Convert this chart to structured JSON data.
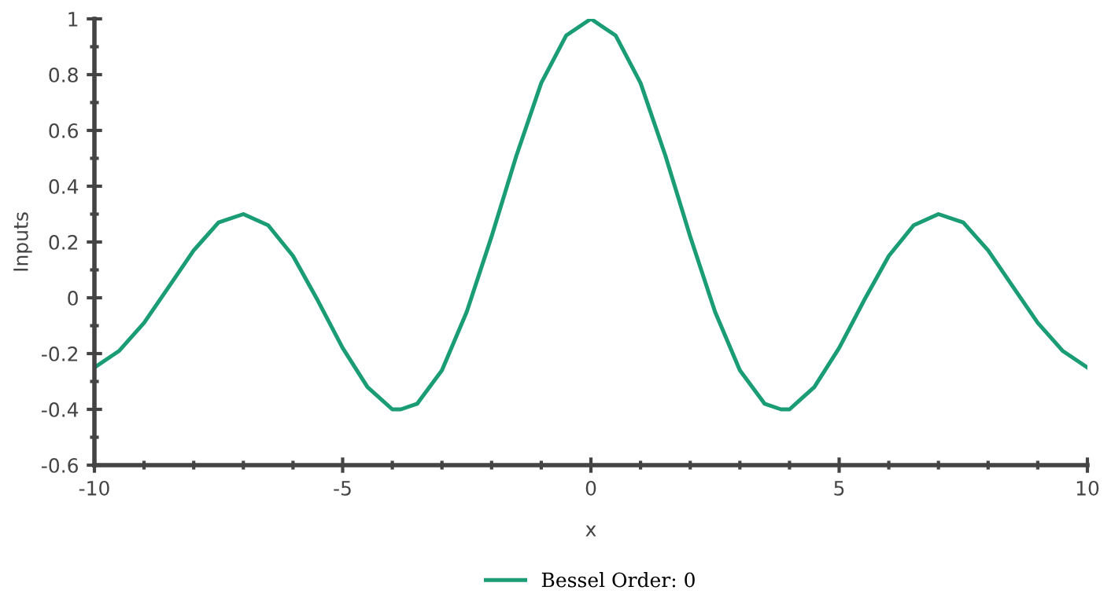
{
  "chart_data": {
    "type": "line",
    "xlabel": "x",
    "ylabel": "Inputs",
    "x": [
      -10,
      -9.5,
      -9,
      -8.5,
      -8,
      -7.5,
      -7,
      -6.5,
      -6,
      -5.5,
      -5,
      -4.5,
      -4,
      -3.83,
      -3.5,
      -3,
      -2.5,
      -2,
      -1.5,
      -1,
      -0.5,
      0,
      0.5,
      1,
      1.5,
      2,
      2.5,
      3,
      3.5,
      3.83,
      4,
      4.5,
      5,
      5.5,
      6,
      6.5,
      7,
      7.5,
      8,
      8.5,
      9,
      9.5,
      10
    ],
    "series": [
      {
        "name": "Bessel Order: 0",
        "color": "#1a9c74",
        "values": [
          -0.25,
          -0.19,
          -0.09,
          0.04,
          0.17,
          0.27,
          0.3,
          0.26,
          0.15,
          -0.01,
          -0.18,
          -0.32,
          -0.4,
          -0.4,
          -0.38,
          -0.26,
          -0.05,
          0.22,
          0.51,
          0.77,
          0.94,
          1,
          0.94,
          0.77,
          0.51,
          0.22,
          -0.05,
          -0.26,
          -0.38,
          -0.4,
          -0.4,
          -0.32,
          -0.18,
          -0.01,
          0.15,
          0.26,
          0.3,
          0.27,
          0.17,
          0.04,
          -0.09,
          -0.19,
          -0.25
        ]
      }
    ],
    "xlim": [
      -10,
      10
    ],
    "xticks": [
      -10,
      -5,
      0,
      5,
      10
    ],
    "ylim": [
      -0.6,
      1
    ],
    "yticks": [
      -0.6,
      -0.4,
      -0.2,
      0,
      0.2,
      0.4,
      0.6,
      0.8,
      1
    ],
    "grid": false,
    "legend": "bottom",
    "marker": "none",
    "line_style": "solid"
  }
}
